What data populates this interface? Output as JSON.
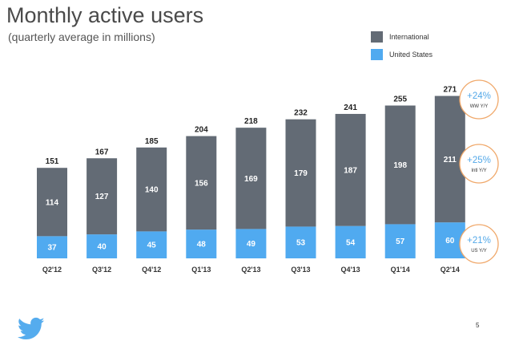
{
  "slide": {
    "title": "Monthly active users",
    "subtitle": "(quarterly average in millions)",
    "page_number": "5"
  },
  "colors": {
    "international": "#636b75",
    "united_states": "#50aaf0",
    "badge_text": "#53a8e8",
    "badge_border": "#f0a86a",
    "background": "#ffffff",
    "logo": "#55acee"
  },
  "icons": {
    "logo": "twitter-bird-icon"
  },
  "chart_data": {
    "type": "bar",
    "stacked": true,
    "title": "Monthly active users",
    "subtitle": "(quarterly average in millions)",
    "xlabel": "",
    "ylabel": "",
    "ylim": [
      0,
      300
    ],
    "grid": false,
    "legend_position": "top-right",
    "categories": [
      "Q2'12",
      "Q3'12",
      "Q4'12",
      "Q1'13",
      "Q2'13",
      "Q3'13",
      "Q4'13",
      "Q1'14",
      "Q2'14"
    ],
    "series": [
      {
        "name": "United States",
        "values": [
          37,
          40,
          45,
          48,
          49,
          53,
          54,
          57,
          60
        ]
      },
      {
        "name": "International",
        "values": [
          114,
          127,
          140,
          156,
          169,
          179,
          187,
          198,
          211
        ]
      }
    ],
    "totals": [
      151,
      167,
      185,
      204,
      218,
      232,
      241,
      255,
      271
    ],
    "legend": [
      "International",
      "United States"
    ],
    "annotations": [
      {
        "value": "+24%",
        "label": "WW Y/Y"
      },
      {
        "value": "+25%",
        "label": "Intl Y/Y"
      },
      {
        "value": "+21%",
        "label": "US Y/Y"
      }
    ]
  }
}
